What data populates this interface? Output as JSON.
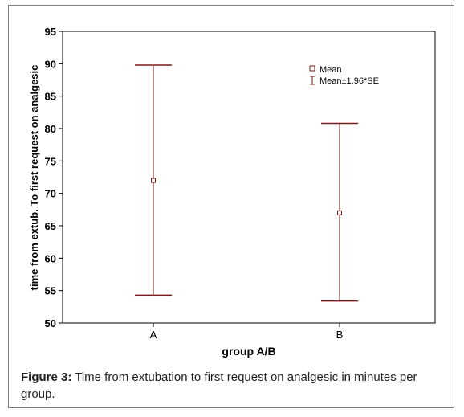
{
  "caption": {
    "label": "Figure 3:",
    "text": " Time from extubation to first request on analgesic in minutes per group."
  },
  "chart_data": {
    "type": "scatter",
    "subtype": "means-with-error-bars",
    "title": "",
    "xlabel": "group A/B",
    "ylabel": "time from extub. To first  request on analgesic",
    "categories": [
      "A",
      "B"
    ],
    "mean": [
      72,
      67
    ],
    "lower": [
      54.3,
      53.4
    ],
    "upper": [
      89.8,
      80.8
    ],
    "ylim": [
      50,
      95
    ],
    "yticks": [
      50,
      55,
      60,
      65,
      70,
      75,
      80,
      85,
      90,
      95
    ],
    "grid": false,
    "legend": {
      "position": "top-right",
      "items": [
        "Mean",
        "Mean±1.96*SE"
      ]
    },
    "colors": {
      "bar": "#7a1a1a",
      "mean_marker": "#7a1a1a",
      "axis": "#000000"
    }
  }
}
